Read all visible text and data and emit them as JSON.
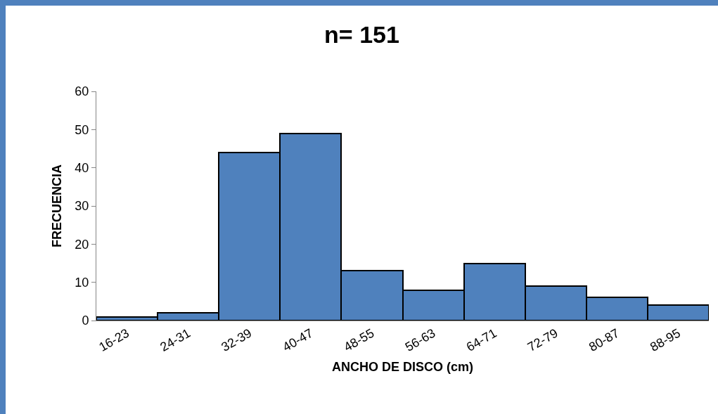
{
  "chart_data": {
    "type": "bar",
    "title": "n= 151",
    "xlabel": "ANCHO DE DISCO (cm)",
    "ylabel": "FRECUENCIA",
    "categories": [
      "16-23",
      "24-31",
      "32-39",
      "40-47",
      "48-55",
      "56-63",
      "64-71",
      "72-79",
      "80-87",
      "88-95"
    ],
    "values": [
      1,
      2,
      44,
      49,
      13,
      8,
      15,
      9,
      6,
      4
    ],
    "color": "#4f81bd",
    "ylim": [
      0,
      60
    ],
    "yticks": [
      0,
      10,
      20,
      30,
      40,
      50,
      60
    ],
    "grid": false,
    "legend": false
  }
}
